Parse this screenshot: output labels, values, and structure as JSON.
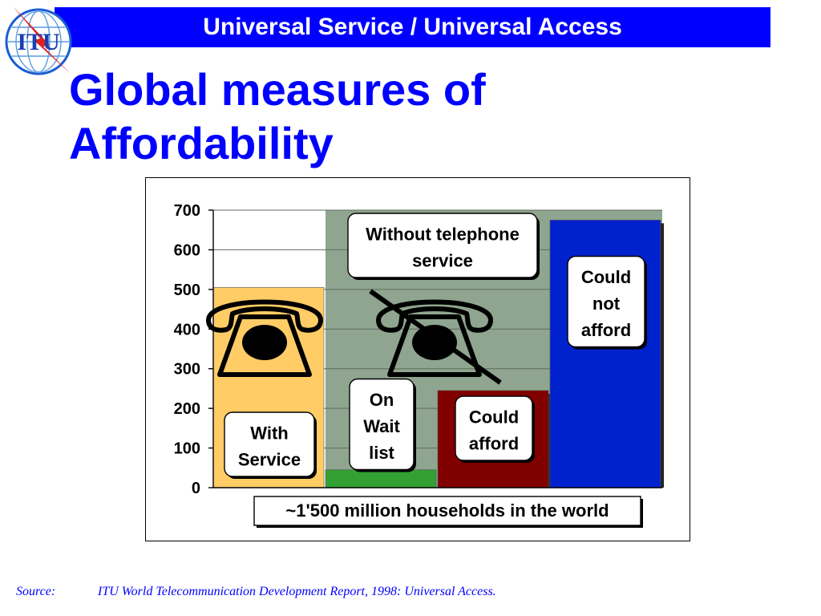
{
  "header": {
    "title": "Universal Service / Universal Access"
  },
  "logo": {
    "text": "ITU",
    "icon": "itu-globe-lightning-logo"
  },
  "slide": {
    "title": "Global measures of Affordability"
  },
  "colors": {
    "header_bg": "#0000ff",
    "title_text": "#0000ff",
    "with_service": "#ffcc66",
    "without_service_bg": "#8fa58f",
    "on_wait_list": "#33a033",
    "could_afford": "#800000",
    "could_not_afford": "#0022cc"
  },
  "chart_data": {
    "type": "bar",
    "ylim": [
      0,
      700
    ],
    "yticks": [
      0,
      100,
      200,
      300,
      400,
      500,
      600,
      700
    ],
    "ytick_labels": [
      "0",
      "100",
      "200",
      "300",
      "400",
      "500",
      "600",
      "700"
    ],
    "grid": true,
    "bars": [
      {
        "name": "With Service",
        "label_lines": [
          "With",
          "Service"
        ],
        "value": 505
      },
      {
        "name": "On Wait list",
        "label_lines": [
          "On",
          "Wait",
          "list"
        ],
        "value": 45
      },
      {
        "name": "Could afford",
        "label_lines": [
          "Could",
          "afford"
        ],
        "value": 245
      },
      {
        "name": "Could not afford",
        "label_lines": [
          "Could",
          "not",
          "afford"
        ],
        "value": 675
      }
    ],
    "background_region": {
      "label_lines": [
        "Without telephone",
        "service"
      ],
      "value": 700
    },
    "footer_label": "~1'500 million households in the world",
    "icons": [
      "telephone-icon",
      "crossed-telephone-icon"
    ]
  },
  "source": {
    "label": "Source:",
    "text": "ITU World Telecommunication Development Report, 1998: Universal Access."
  }
}
